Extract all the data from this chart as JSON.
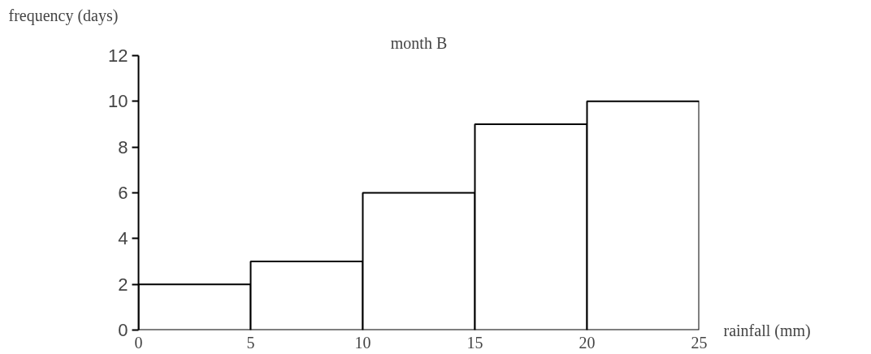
{
  "chart_data": {
    "type": "histogram",
    "title": "month B",
    "xlabel": "rainfall (mm)",
    "ylabel": "frequency (days)",
    "bins": [
      0,
      5,
      10,
      15,
      20,
      25
    ],
    "values": [
      2,
      3,
      6,
      9,
      10
    ],
    "color": "#ffffff",
    "xlim": [
      0,
      25
    ],
    "xticks": [
      0,
      5,
      10,
      15,
      20,
      25
    ],
    "ylim": [
      0,
      12
    ],
    "yticks": [
      0,
      2,
      4,
      6,
      8,
      10,
      12
    ],
    "grid": false
  }
}
